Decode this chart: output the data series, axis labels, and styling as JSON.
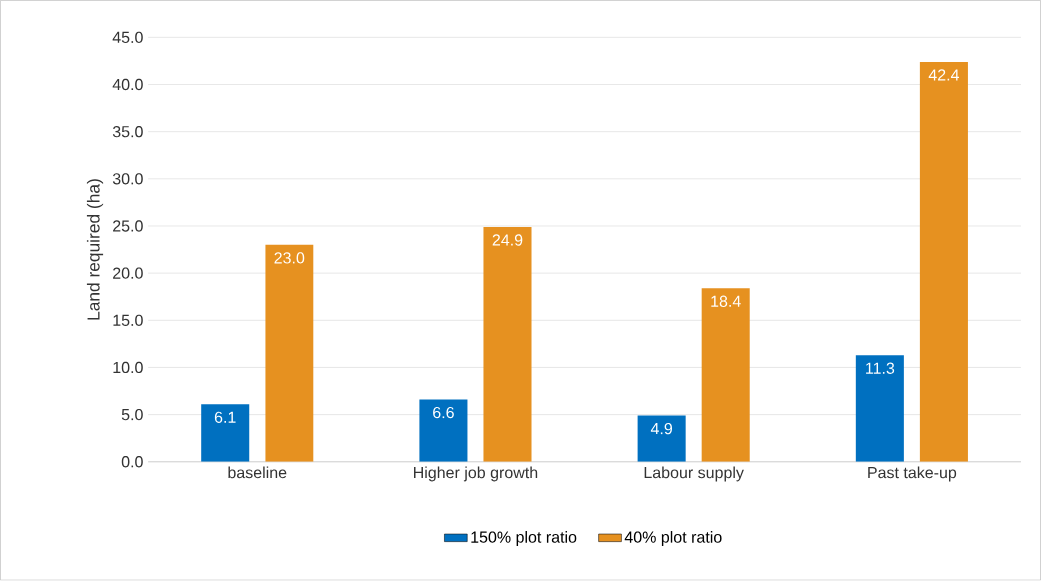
{
  "chart_data": {
    "type": "bar",
    "ylabel": "Land required (ha)",
    "categories": [
      "baseline",
      "Higher job growth",
      "Labour supply",
      "Past take-up"
    ],
    "series": [
      {
        "name": "150% plot ratio",
        "color": "#0070c0",
        "values": [
          6.1,
          6.6,
          4.9,
          11.3
        ],
        "value_labels": [
          "6.1",
          "6.6",
          "4.9",
          "11.3"
        ]
      },
      {
        "name": "40% plot ratio",
        "color": "#e69120",
        "values": [
          23.0,
          24.9,
          18.4,
          42.4
        ],
        "value_labels": [
          "23.0",
          "24.9",
          "18.4",
          "42.4"
        ]
      }
    ],
    "ylim": [
      0,
      45
    ],
    "yticks": [
      {
        "value": 0,
        "label": "0.0"
      },
      {
        "value": 5,
        "label": "5.0"
      },
      {
        "value": 10,
        "label": "10.0"
      },
      {
        "value": 15,
        "label": "15.0"
      },
      {
        "value": 20,
        "label": "20.0"
      },
      {
        "value": 25,
        "label": "25.0"
      },
      {
        "value": 30,
        "label": "30.0"
      },
      {
        "value": 35,
        "label": "35.0"
      },
      {
        "value": 40,
        "label": "40.0"
      },
      {
        "value": 45,
        "label": "45.0"
      }
    ],
    "grid": "y",
    "legend": "bottom"
  }
}
